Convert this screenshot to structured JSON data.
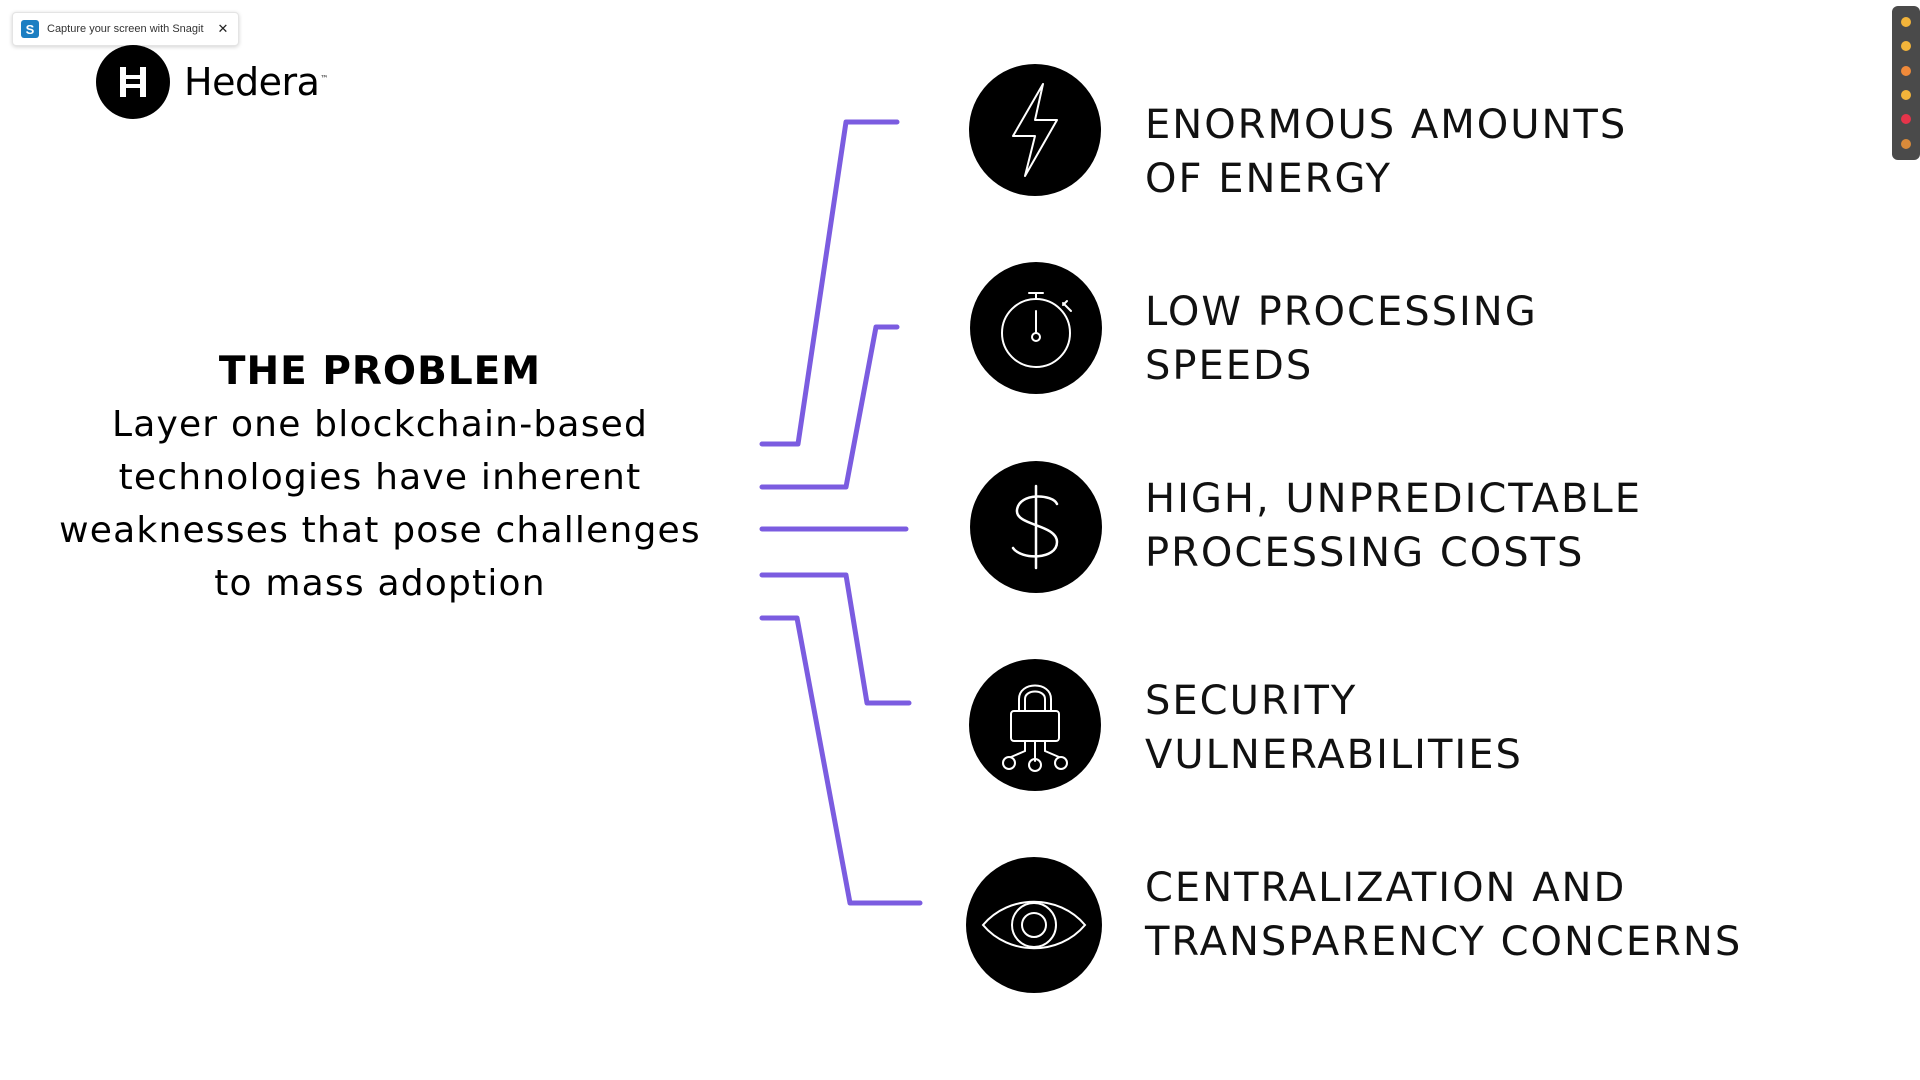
{
  "toast": {
    "logo_letter": "S",
    "text": "Capture your screen with Snagit",
    "close": "✕"
  },
  "brand": {
    "name": "Hedera",
    "tm": "™",
    "icon": "hedera-h-icon"
  },
  "problem": {
    "title": "THE PROBLEM",
    "lines": [
      "Layer one blockchain-based",
      "technologies have inherent",
      "weaknesses that pose challenges",
      "to mass adoption"
    ]
  },
  "items": [
    {
      "icon": "lightning-bolt-icon",
      "line1": "ENORMOUS AMOUNTS",
      "line2": "OF ENERGY"
    },
    {
      "icon": "stopwatch-icon",
      "line1": "LOW PROCESSING",
      "line2": "SPEEDS"
    },
    {
      "icon": "dollar-sign-icon",
      "line1": "HIGH, UNPREDICTABLE",
      "line2": "PROCESSING COSTS"
    },
    {
      "icon": "padlock-network-icon",
      "line1": "SECURITY",
      "line2": "VULNERABILITIES"
    },
    {
      "icon": "eye-icon",
      "line1": "CENTRALIZATION AND",
      "line2": "TRANSPARENCY CONCERNS"
    }
  ],
  "colors": {
    "accent": "#7b5ce0",
    "icon_bg": "#000000",
    "text": "#111111",
    "snagit_blue": "#1b7ec2",
    "rail": "#4a4a4a"
  },
  "rail": {
    "reactions": [
      "thumbs-up-icon",
      "thumbs-down-icon",
      "surprised-face-icon",
      "laughing-face-icon",
      "heart-icon",
      "party-popper-icon"
    ],
    "reaction_colors": [
      "#f3b43a",
      "#f3b43a",
      "#f08a3a",
      "#f3b43a",
      "#e5344a",
      "#d98a3a"
    ]
  }
}
